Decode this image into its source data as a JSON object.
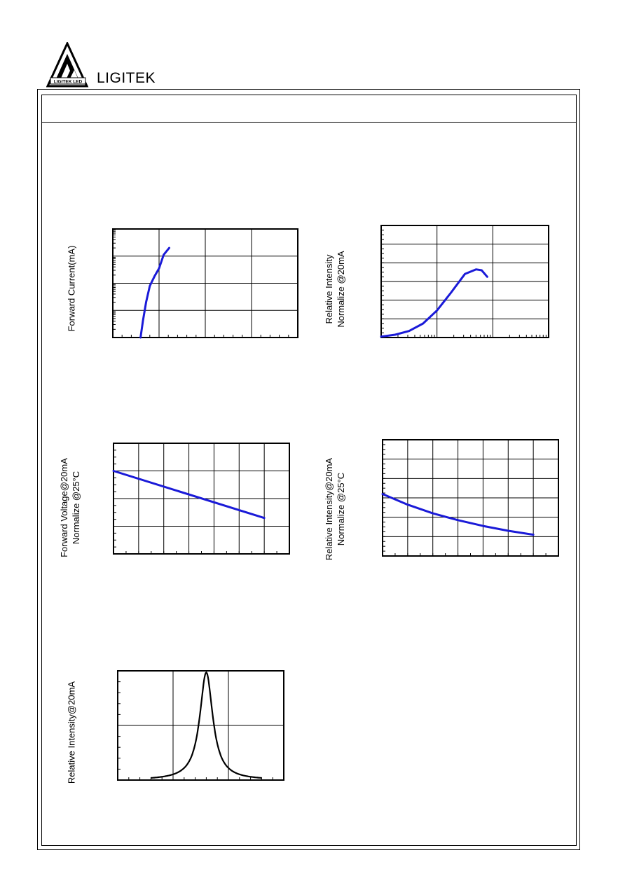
{
  "header": {
    "brand": "LIGITEK",
    "logo_text": "LIGITEK LED"
  },
  "colors": {
    "curve": "#1a1ad8",
    "spectrum": "#000000",
    "grid": "#000000"
  },
  "charts": [
    {
      "id": "forward-current",
      "ylabel": "Forward Current(mA)",
      "ylabel2": "",
      "chart_data": {
        "type": "line",
        "ylog": true,
        "xlim": [
          0,
          4
        ],
        "ylim": [
          0,
          4
        ],
        "x_ticks_minor": 20,
        "y_grid_major": 4,
        "x_grid_major": 4,
        "series": [
          {
            "x": [
              0.6,
              0.65,
              0.72,
              0.8,
              0.9,
              1.0,
              1.1,
              1.22
            ],
            "y": [
              0.0,
              0.6,
              1.3,
              1.9,
              2.25,
              2.55,
              3.05,
              3.3
            ]
          }
        ]
      }
    },
    {
      "id": "relative-intensity-vs-current",
      "ylabel": "Relative Intensity",
      "ylabel2": "Normalize @20mA",
      "chart_data": {
        "type": "line",
        "xlog": true,
        "xlim": [
          0,
          3
        ],
        "ylim": [
          0,
          6
        ],
        "x_grid_major": 3,
        "y_grid_major": 6,
        "series": [
          {
            "x": [
              0,
              0.25,
              0.5,
              0.75,
              1.0,
              1.25,
              1.5,
              1.7,
              1.8,
              1.9
            ],
            "y": [
              0.05,
              0.15,
              0.35,
              0.75,
              1.45,
              2.4,
              3.4,
              3.65,
              3.6,
              3.25
            ]
          }
        ]
      }
    },
    {
      "id": "forward-voltage-vs-temp",
      "ylabel": "Forward Voltage@20mA",
      "ylabel2": "Normalize @25°C",
      "chart_data": {
        "type": "line",
        "xlim": [
          0,
          7
        ],
        "ylim": [
          0,
          4
        ],
        "x_grid_major": 7,
        "y_grid_major": 4,
        "series": [
          {
            "x": [
              0,
              6
            ],
            "y": [
              3.0,
              1.3
            ]
          }
        ]
      }
    },
    {
      "id": "relative-intensity-vs-temp",
      "ylabel": "Relative Intensity@20mA",
      "ylabel2": "Normalize @25°C",
      "chart_data": {
        "type": "line",
        "xlim": [
          0,
          7
        ],
        "ylim": [
          0,
          6
        ],
        "x_grid_major": 7,
        "y_grid_major": 6,
        "series": [
          {
            "x": [
              0,
              1,
              2,
              3,
              4,
              5,
              6
            ],
            "y": [
              3.2,
              2.65,
              2.2,
              1.85,
              1.55,
              1.3,
              1.1
            ]
          }
        ]
      }
    },
    {
      "id": "spectrum",
      "ylabel": "Relative Intensity@20mA",
      "ylabel2": "",
      "chart_data": {
        "type": "line",
        "xlim": [
          0,
          3
        ],
        "ylim": [
          0,
          2
        ],
        "x_grid_major": 3,
        "y_grid_major": 2,
        "peak_x": 1.6,
        "peak_y": 1.97,
        "gamma": 0.18
      }
    }
  ]
}
